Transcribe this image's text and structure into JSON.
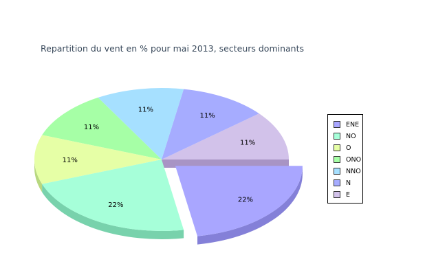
{
  "chart_data": {
    "type": "pie",
    "title": "Repartition du vent en % pour mai 2013, secteurs dominants",
    "slices": [
      {
        "name": "E",
        "value": 11,
        "label": "11%",
        "color": "#d2c2ea",
        "side": "#a894c4"
      },
      {
        "name": "N",
        "value": 11,
        "label": "11%",
        "color": "#a6acff",
        "side": "#8488d8"
      },
      {
        "name": "NNO",
        "value": 11,
        "label": "11%",
        "color": "#a6e0ff",
        "side": "#80b8d8"
      },
      {
        "name": "ONO",
        "value": 11,
        "label": "11%",
        "color": "#a6ffa6",
        "side": "#80d880"
      },
      {
        "name": "O",
        "value": 11,
        "label": "11%",
        "color": "#e6ffa6",
        "side": "#b8d880"
      },
      {
        "name": "NO",
        "value": 22,
        "label": "22%",
        "color": "#a6ffd9",
        "side": "#78d2ac"
      },
      {
        "name": "ENE",
        "value": 22,
        "label": "22%",
        "color": "#a9a6ff",
        "side": "#8480d8",
        "exploded": true
      }
    ],
    "legend": {
      "placement": "right",
      "entries": [
        {
          "name": "ENE",
          "color": "#a9a6ff"
        },
        {
          "name": "NO",
          "color": "#a6ffd9"
        },
        {
          "name": "O",
          "color": "#e6ffa6"
        },
        {
          "name": "ONO",
          "color": "#a6ffa6"
        },
        {
          "name": "NNO",
          "color": "#a6e0ff"
        },
        {
          "name": "N",
          "color": "#a6acff"
        },
        {
          "name": "E",
          "color": "#d2c2ea"
        }
      ]
    }
  }
}
